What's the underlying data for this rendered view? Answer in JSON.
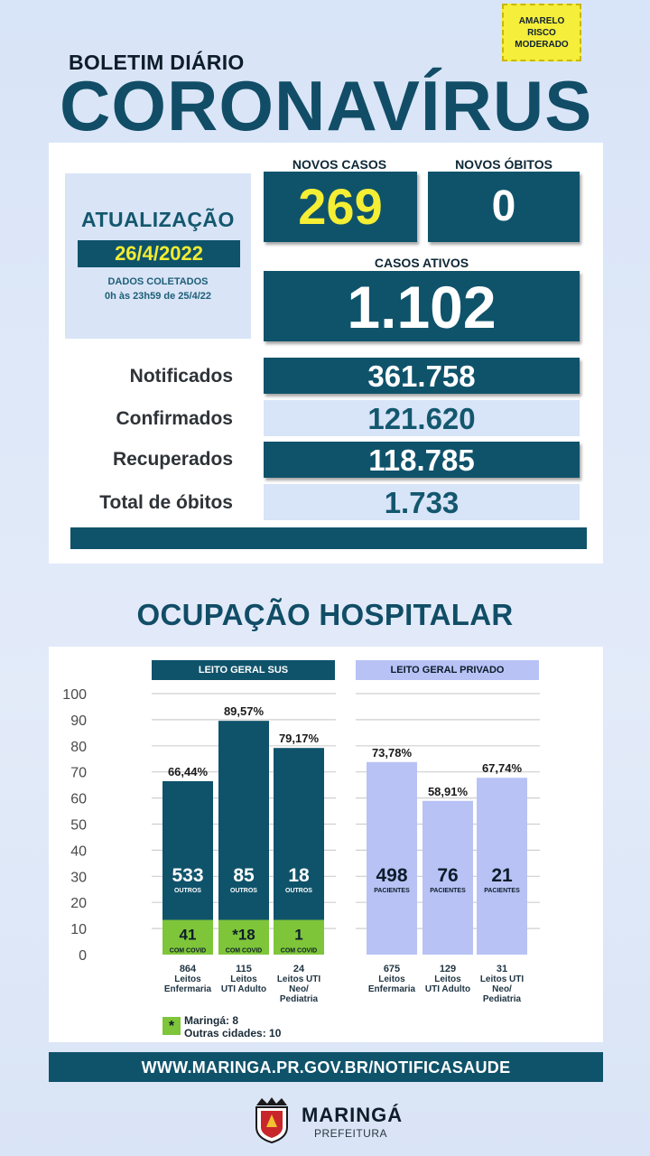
{
  "header": {
    "risk_badge": [
      "AMARELO",
      "RISCO",
      "MODERADO"
    ],
    "kicker": "BOLETIM DIÁRIO",
    "title": "CORONAVÍRUS"
  },
  "update": {
    "title": "ATUALIZAÇÃO",
    "date": "26/4/2022",
    "note_line1": "DADOS COLETADOS",
    "note_line2": "0h às 23h59 de 25/4/22"
  },
  "daily": {
    "novos_casos_label": "NOVOS CASOS",
    "novos_casos_value": "269",
    "novos_obitos_label": "NOVOS ÓBITOS",
    "novos_obitos_value": "0",
    "casos_ativos_label": "CASOS ATIVOS",
    "casos_ativos_value": "1.102"
  },
  "totals": [
    {
      "label": "Notificados",
      "value": "361.758"
    },
    {
      "label": "Confirmados",
      "value": "121.620"
    },
    {
      "label": "Recuperados",
      "value": "118.785"
    },
    {
      "label": "Total de óbitos",
      "value": "1.733"
    }
  ],
  "section_title": "OCUPAÇÃO HOSPITALAR",
  "chart_data": {
    "type": "bar",
    "groups": [
      {
        "name": "LEITO GERAL SUS",
        "color": "#0f536b",
        "covid_color": "#7ec53a"
      },
      {
        "name": "LEITO GERAL PRIVADO",
        "color": "#b8c2f5"
      }
    ],
    "ylim": [
      0,
      100
    ],
    "yticks": [
      0,
      10,
      20,
      30,
      40,
      50,
      60,
      70,
      80,
      90,
      100
    ],
    "grid": true,
    "bars": [
      {
        "group": 0,
        "pct": 66.44,
        "pct_label": "66,44%",
        "main_value": "533",
        "main_sub": "OUTROS",
        "covid_value": "41",
        "covid_sub": "COM COVID",
        "covid_pct": 13.3,
        "total": "864",
        "cat": [
          "Leitos",
          "Enfermaria"
        ]
      },
      {
        "group": 0,
        "pct": 89.57,
        "pct_label": "89,57%",
        "main_value": "85",
        "main_sub": "OUTROS",
        "covid_value": "*18",
        "covid_sub": "COM COVID",
        "covid_pct": 13.3,
        "total": "115",
        "cat": [
          "Leitos",
          "UTI Adulto"
        ]
      },
      {
        "group": 0,
        "pct": 79.17,
        "pct_label": "79,17%",
        "main_value": "18",
        "main_sub": "OUTROS",
        "covid_value": "1",
        "covid_sub": "COM COVID",
        "covid_pct": 13.3,
        "total": "24",
        "cat": [
          "Leitos UTI",
          "Neo/",
          "Pediatria"
        ]
      },
      {
        "group": 1,
        "pct": 73.78,
        "pct_label": "73,78%",
        "main_value": "498",
        "main_sub": "PACIENTES",
        "total": "675",
        "cat": [
          "Leitos",
          "Enfermaria"
        ]
      },
      {
        "group": 1,
        "pct": 58.91,
        "pct_label": "58,91%",
        "main_value": "76",
        "main_sub": "PACIENTES",
        "total": "129",
        "cat": [
          "Leitos",
          "UTI Adulto"
        ]
      },
      {
        "group": 1,
        "pct": 67.74,
        "pct_label": "67,74%",
        "main_value": "21",
        "main_sub": "PACIENTES",
        "total": "31",
        "cat": [
          "Leitos UTI",
          "Neo/",
          "Pediatria"
        ]
      }
    ],
    "legend": {
      "symbol": "*",
      "line1": "Maringá: 8",
      "line2": "Outras cidades: 10"
    }
  },
  "footer": {
    "url": "WWW.MARINGA.PR.GOV.BR/NOTIFICASAUDE",
    "logo_name": "MARINGÁ",
    "logo_sub": "PREFEITURA"
  }
}
